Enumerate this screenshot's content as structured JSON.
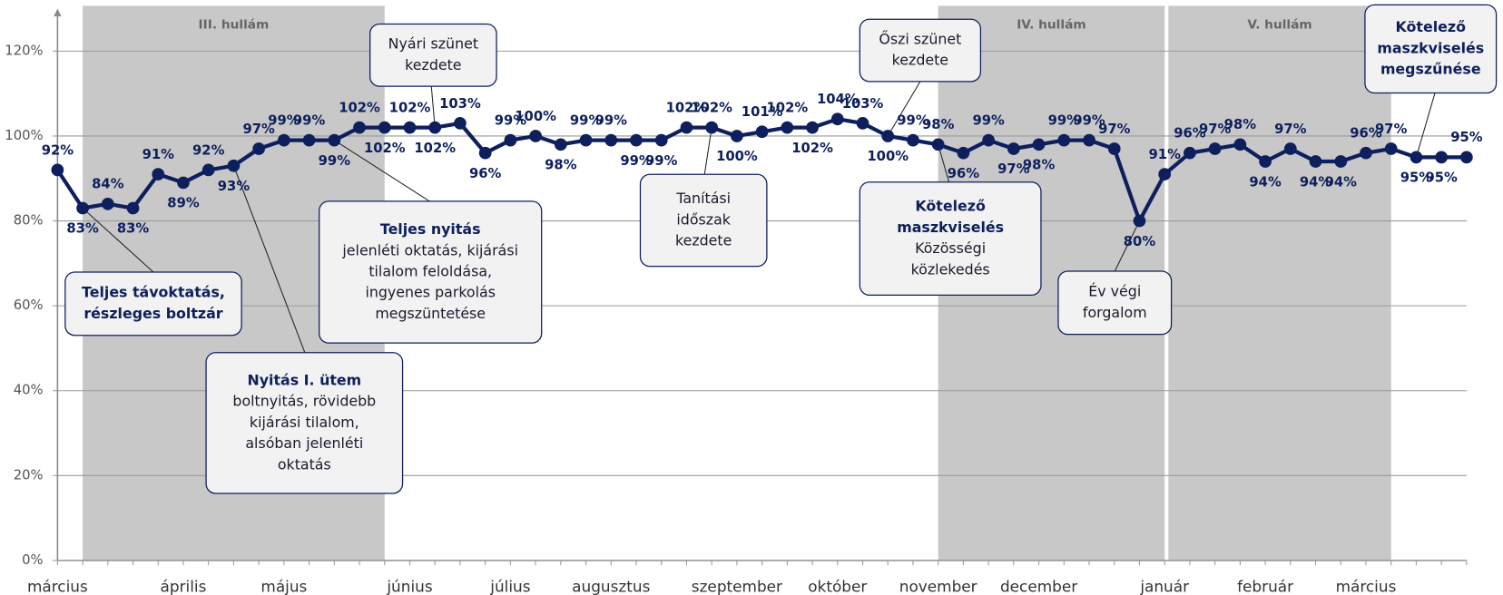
{
  "chart_data": {
    "type": "line",
    "categories": [
      "március",
      null,
      null,
      null,
      null,
      "április",
      null,
      null,
      null,
      "május",
      null,
      null,
      null,
      null,
      "június",
      null,
      null,
      null,
      "július",
      null,
      null,
      null,
      "augusztus",
      null,
      null,
      null,
      null,
      "szeptember",
      null,
      null,
      null,
      "október",
      null,
      null,
      null,
      "november",
      null,
      null,
      null,
      "december",
      null,
      null,
      null,
      null,
      "január",
      null,
      null,
      null,
      "február",
      null,
      null,
      null,
      "március",
      null,
      null,
      null,
      null
    ],
    "series": [
      {
        "color": "#0d1f5c",
        "values": [
          92,
          83,
          84,
          83,
          91,
          89,
          92,
          93,
          97,
          99,
          99,
          99,
          102,
          102,
          102,
          102,
          103,
          96,
          99,
          100,
          98,
          99,
          99,
          99,
          99,
          102,
          102,
          100,
          101,
          102,
          102,
          104,
          103,
          100,
          99,
          98,
          96,
          99,
          97,
          98,
          99,
          99,
          97,
          80,
          91,
          96,
          97,
          98,
          94,
          97,
          94,
          94,
          96,
          97,
          95,
          95,
          95
        ]
      }
    ],
    "ylim": [
      0,
      130
    ],
    "yticks": [
      {
        "value": 0,
        "label": "0%"
      },
      {
        "value": 20,
        "label": "20%"
      },
      {
        "value": 40,
        "label": "40%"
      },
      {
        "value": 60,
        "label": "60%"
      },
      {
        "value": 80,
        "label": "80%"
      },
      {
        "value": 100,
        "label": "100%"
      },
      {
        "value": 120,
        "label": "120%"
      }
    ],
    "grid": true,
    "bands": [
      {
        "label": "III. hullám",
        "start": 1,
        "end": 13
      },
      {
        "label": "IV. hullám",
        "start": 35,
        "end": 44
      },
      {
        "label": "V. hullám",
        "start": 44.15,
        "end": 53
      }
    ],
    "annotations": [
      {
        "title": [
          "Teljes távoktatás,",
          "részleges boltzár"
        ]
      },
      {
        "title": [
          "Nyitás I. ütem"
        ],
        "text": [
          "boltnyitás, rövidebb",
          "kijárási tilalom,",
          "alsóban jelenléti",
          "oktatás"
        ]
      },
      {
        "title": [
          "Teljes nyitás"
        ],
        "text": [
          "jelenléti oktatás, kijárási",
          "tilalom feloldása,",
          "ingyenes parkolás",
          "megszüntetése"
        ]
      },
      {
        "text": [
          "Nyári szünet",
          "kezdete"
        ]
      },
      {
        "text": [
          "Tanítási",
          "időszak",
          "kezdete"
        ]
      },
      {
        "text": [
          "Őszi szünet",
          "kezdete"
        ]
      },
      {
        "title": [
          "Kötelező",
          "maszkviselés"
        ],
        "text": [
          "Közösségi",
          "közlekedés"
        ]
      },
      {
        "text": [
          "Év végi",
          "forgalom"
        ]
      },
      {
        "title": [
          "Kötelező",
          "maszkviselés",
          "megszűnése"
        ]
      }
    ]
  }
}
